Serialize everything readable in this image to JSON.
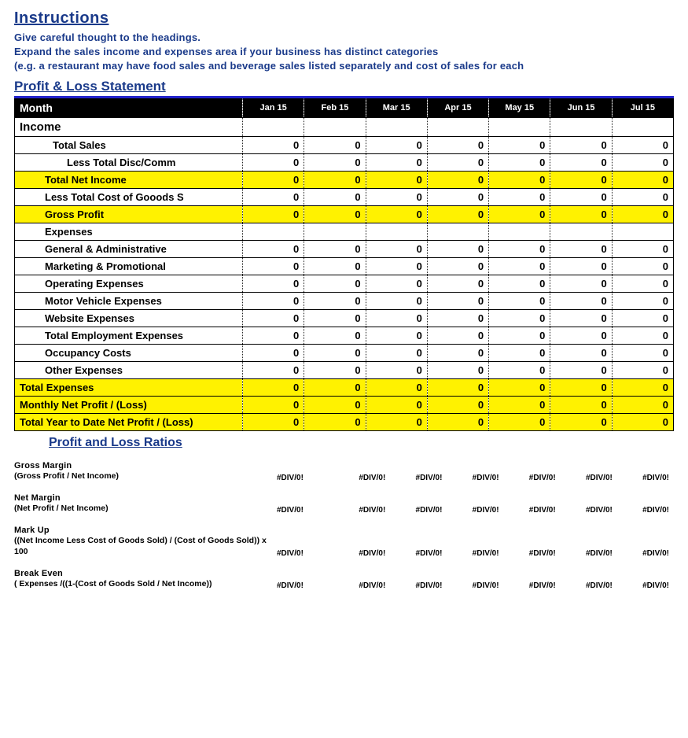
{
  "colors": {
    "heading": "#1a3a8a",
    "table_top_border": "#2222cc",
    "header_bg": "#000000",
    "header_fg": "#ffffff",
    "highlight_bg": "#fff200",
    "text": "#000000",
    "background": "#ffffff"
  },
  "instructions": {
    "title": "Instructions",
    "lines": [
      "Give careful thought to the headings.",
      "Expand the sales income and expenses area if your business has distinct categories",
      "(e.g. a restaurant may have food sales and beverage sales listed separately and cost of sales for each"
    ]
  },
  "pl": {
    "title": "Profit & Loss Statement",
    "month_label": "Month",
    "months": [
      "Jan 15",
      "Feb 15",
      "Mar 15",
      "Apr 15",
      "May 15",
      "Jun 15",
      "Jul 15"
    ],
    "rows": [
      {
        "label": "Income",
        "indent": "indent0",
        "highlight": false,
        "values": null
      },
      {
        "label": "Total Sales",
        "indent": "indent1",
        "highlight": false,
        "values": [
          "0",
          "0",
          "0",
          "0",
          "0",
          "0",
          "0"
        ]
      },
      {
        "label": "Less Total Disc/Comm",
        "indent": "indent2",
        "highlight": false,
        "values": [
          "0",
          "0",
          "0",
          "0",
          "0",
          "0",
          "0"
        ]
      },
      {
        "label": "Total Net Income",
        "indent": "indent-h",
        "highlight": true,
        "values": [
          "0",
          "0",
          "0",
          "0",
          "0",
          "0",
          "0"
        ]
      },
      {
        "label": "Less Total Cost of Gooods S",
        "indent": "indent-h",
        "highlight": false,
        "values": [
          "0",
          "0",
          "0",
          "0",
          "0",
          "0",
          "0"
        ]
      },
      {
        "label": "Gross Profit",
        "indent": "indent-h",
        "highlight": true,
        "values": [
          "0",
          "0",
          "0",
          "0",
          "0",
          "0",
          "0"
        ]
      },
      {
        "label": "Expenses",
        "indent": "indent-h",
        "highlight": false,
        "values": [
          "",
          "",
          "",
          "",
          "",
          "",
          ""
        ]
      },
      {
        "label": "General & Administrative",
        "indent": "indent-h",
        "highlight": false,
        "values": [
          "0",
          "0",
          "0",
          "0",
          "0",
          "0",
          "0"
        ]
      },
      {
        "label": "Marketing & Promotional",
        "indent": "indent-h",
        "highlight": false,
        "values": [
          "0",
          "0",
          "0",
          "0",
          "0",
          "0",
          "0"
        ]
      },
      {
        "label": "Operating Expenses",
        "indent": "indent-h",
        "highlight": false,
        "values": [
          "0",
          "0",
          "0",
          "0",
          "0",
          "0",
          "0"
        ]
      },
      {
        "label": "Motor Vehicle Expenses",
        "indent": "indent-h",
        "highlight": false,
        "values": [
          "0",
          "0",
          "0",
          "0",
          "0",
          "0",
          "0"
        ]
      },
      {
        "label": "Website Expenses",
        "indent": "indent-h",
        "highlight": false,
        "values": [
          "0",
          "0",
          "0",
          "0",
          "0",
          "0",
          "0"
        ]
      },
      {
        "label": "Total Employment Expenses",
        "indent": "indent-h",
        "highlight": false,
        "values": [
          "0",
          "0",
          "0",
          "0",
          "0",
          "0",
          "0"
        ]
      },
      {
        "label": "Occupancy Costs",
        "indent": "indent-h",
        "highlight": false,
        "values": [
          "0",
          "0",
          "0",
          "0",
          "0",
          "0",
          "0"
        ]
      },
      {
        "label": "Other Expenses",
        "indent": "indent-h",
        "highlight": false,
        "values": [
          "0",
          "0",
          "0",
          "0",
          "0",
          "0",
          "0"
        ]
      },
      {
        "label": "Total Expenses",
        "indent": "hl-full",
        "highlight": true,
        "values": [
          "0",
          "0",
          "0",
          "0",
          "0",
          "0",
          "0"
        ]
      },
      {
        "label": "Monthly Net Profit / (Loss)",
        "indent": "hl-full",
        "highlight": true,
        "values": [
          "0",
          "0",
          "0",
          "0",
          "0",
          "0",
          "0"
        ]
      },
      {
        "label": "Total Year to Date Net Profit / (Loss)",
        "indent": "hl-full",
        "highlight": true,
        "multiline": true,
        "values": [
          "0",
          "0",
          "0",
          "0",
          "0",
          "0",
          "0"
        ]
      }
    ]
  },
  "ratios": {
    "title": "Profit and Loss Ratios",
    "div0_first": "#DIV/0!",
    "div0": "#DIV/0!",
    "items": [
      {
        "title": "Gross Margin",
        "formula": "(Gross Profit / Net Income)"
      },
      {
        "title": "Net Margin",
        "formula": "(Net Profit / Net Income)"
      },
      {
        "title": "Mark Up",
        "formula": "((Net Income Less Cost of Goods Sold) / (Cost of Goods Sold)) x 100"
      },
      {
        "title": "Break Even",
        "formula": "( Expenses /((1-(Cost of Goods Sold / Net Income))"
      }
    ]
  }
}
